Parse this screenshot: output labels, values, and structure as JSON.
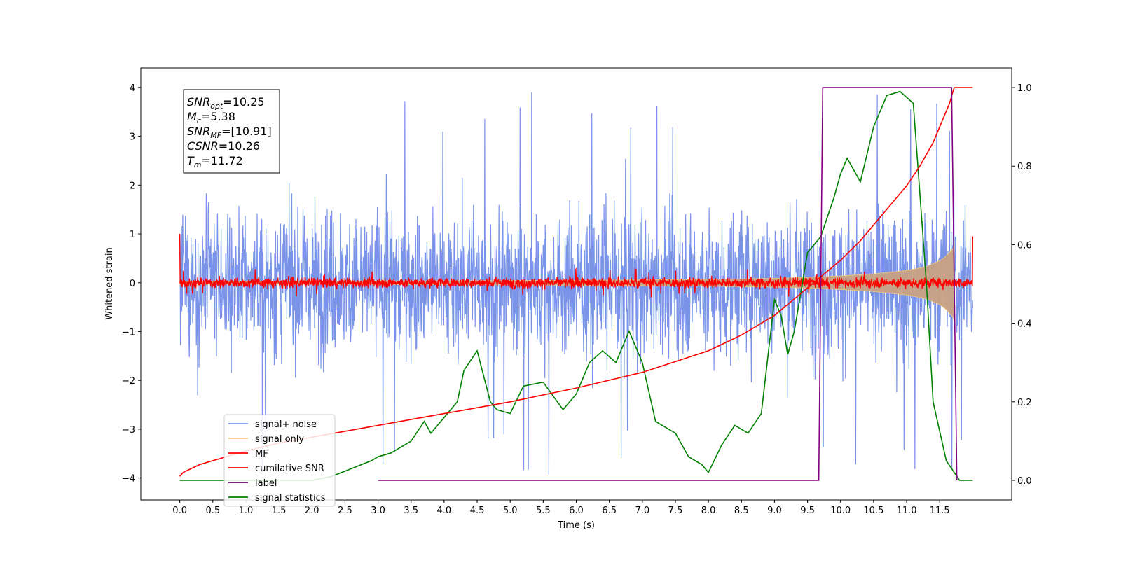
{
  "chart_data": {
    "type": "line",
    "xlabel": "Time (s)",
    "ylabel": "Whitened strain",
    "xlim": [
      -0.59,
      12.59
    ],
    "ylim": [
      -4.45,
      4.4
    ],
    "y2lim": [
      -0.05,
      1.05
    ],
    "grid": false,
    "legend_placement": "lower left",
    "x_ticks": [
      "0.0",
      "0.5",
      "1.0",
      "1.5",
      "2.0",
      "2.5",
      "3.0",
      "3.5",
      "4.0",
      "4.5",
      "5.0",
      "5.5",
      "6.0",
      "6.5",
      "7.0",
      "7.5",
      "8.0",
      "8.5",
      "9.0",
      "9.5",
      "10.0",
      "10.5",
      "11.0",
      "11.5"
    ],
    "y_ticks": [
      "4",
      "3",
      "2",
      "1",
      "0",
      "−1",
      "−2",
      "−3",
      "−4"
    ],
    "y2_ticks": [
      "1.0",
      "0.8",
      "0.6",
      "0.4",
      "0.2",
      "0.0"
    ],
    "annotation": [
      {
        "main": "SNR",
        "sub": "opt",
        "rest": "=10.25"
      },
      {
        "main": "M",
        "sub": "c",
        "rest": "=5.38"
      },
      {
        "main": "SNR",
        "sub": "MF",
        "rest": "=[10.91]"
      },
      {
        "main": "CSNR",
        "sub": "",
        "rest": "=10.26"
      },
      {
        "main": "T",
        "sub": "m",
        "rest": "=11.72"
      }
    ],
    "series": [
      {
        "name": "signal+ noise",
        "color": "#7893e8",
        "axis": "left",
        "style": "noise-band",
        "t_range": [
          0.0,
          12.0
        ],
        "upper_envelope_typical": 2.0,
        "lower_envelope_typical": -2.0,
        "peak_max": 4.0,
        "peak_min": -4.15
      },
      {
        "name": "signal only",
        "color": "#f5c97a",
        "axis": "left",
        "style": "chirp-envelope",
        "x": [
          0.0,
          2.0,
          4.0,
          6.0,
          8.0,
          9.0,
          9.5,
          10.0,
          10.5,
          11.0,
          11.3,
          11.5,
          11.6,
          11.7,
          11.72
        ],
        "amplitude": [
          0.03,
          0.035,
          0.04,
          0.05,
          0.07,
          0.09,
          0.11,
          0.14,
          0.18,
          0.25,
          0.33,
          0.45,
          0.55,
          0.7,
          0.8
        ]
      },
      {
        "name": "MF",
        "color": "#ff0000",
        "axis": "left",
        "style": "noise-band",
        "t_range": [
          0.0,
          12.0
        ],
        "upper_envelope_typical": 0.15,
        "lower_envelope_typical": -0.15,
        "start_value": 1.0,
        "end_value": 0.95
      },
      {
        "name": "cumilative SNR",
        "color": "#ff0000",
        "axis": "right",
        "x": [
          0.0,
          0.05,
          0.3,
          0.7,
          1.0,
          1.5,
          2.0,
          3.0,
          4.0,
          5.0,
          6.0,
          7.0,
          8.0,
          8.5,
          9.0,
          9.5,
          10.0,
          10.3,
          10.6,
          11.0,
          11.2,
          11.4,
          11.55,
          11.65,
          11.7,
          11.72,
          11.75,
          11.85,
          12.0
        ],
        "values": [
          0.01,
          0.02,
          0.04,
          0.06,
          0.075,
          0.095,
          0.11,
          0.14,
          0.17,
          0.2,
          0.235,
          0.275,
          0.33,
          0.37,
          0.42,
          0.49,
          0.56,
          0.61,
          0.67,
          0.75,
          0.8,
          0.86,
          0.92,
          0.96,
          0.99,
          1.0,
          1.0,
          1.0,
          1.0
        ]
      },
      {
        "name": "label",
        "color": "#800080",
        "axis": "right",
        "x": [
          3.0,
          9.67,
          9.73,
          11.68,
          11.76
        ],
        "values": [
          0.0,
          0.0,
          1.0,
          1.0,
          0.0
        ]
      },
      {
        "name": "signal statistics",
        "color": "#008000",
        "axis": "right",
        "x": [
          0.0,
          0.5,
          1.0,
          1.5,
          2.0,
          2.3,
          2.6,
          2.9,
          3.0,
          3.2,
          3.5,
          3.7,
          3.8,
          4.0,
          4.2,
          4.3,
          4.5,
          4.7,
          4.8,
          5.0,
          5.2,
          5.5,
          5.8,
          6.0,
          6.2,
          6.4,
          6.6,
          6.8,
          7.0,
          7.2,
          7.5,
          7.7,
          7.9,
          8.0,
          8.2,
          8.4,
          8.6,
          8.8,
          9.0,
          9.1,
          9.2,
          9.3,
          9.5,
          9.7,
          9.9,
          10.0,
          10.1,
          10.3,
          10.5,
          10.7,
          10.9,
          11.1,
          11.3,
          11.4,
          11.6,
          11.8,
          12.0
        ],
        "values": [
          0.0,
          0.0,
          0.0,
          0.0,
          0.0,
          0.01,
          0.03,
          0.05,
          0.06,
          0.07,
          0.1,
          0.15,
          0.12,
          0.16,
          0.2,
          0.28,
          0.33,
          0.2,
          0.18,
          0.17,
          0.24,
          0.25,
          0.18,
          0.22,
          0.3,
          0.33,
          0.3,
          0.38,
          0.3,
          0.15,
          0.12,
          0.06,
          0.04,
          0.02,
          0.09,
          0.14,
          0.12,
          0.17,
          0.46,
          0.42,
          0.32,
          0.38,
          0.58,
          0.62,
          0.72,
          0.78,
          0.82,
          0.76,
          0.9,
          0.98,
          0.99,
          0.96,
          0.5,
          0.2,
          0.05,
          0.0,
          0.0
        ]
      }
    ]
  }
}
